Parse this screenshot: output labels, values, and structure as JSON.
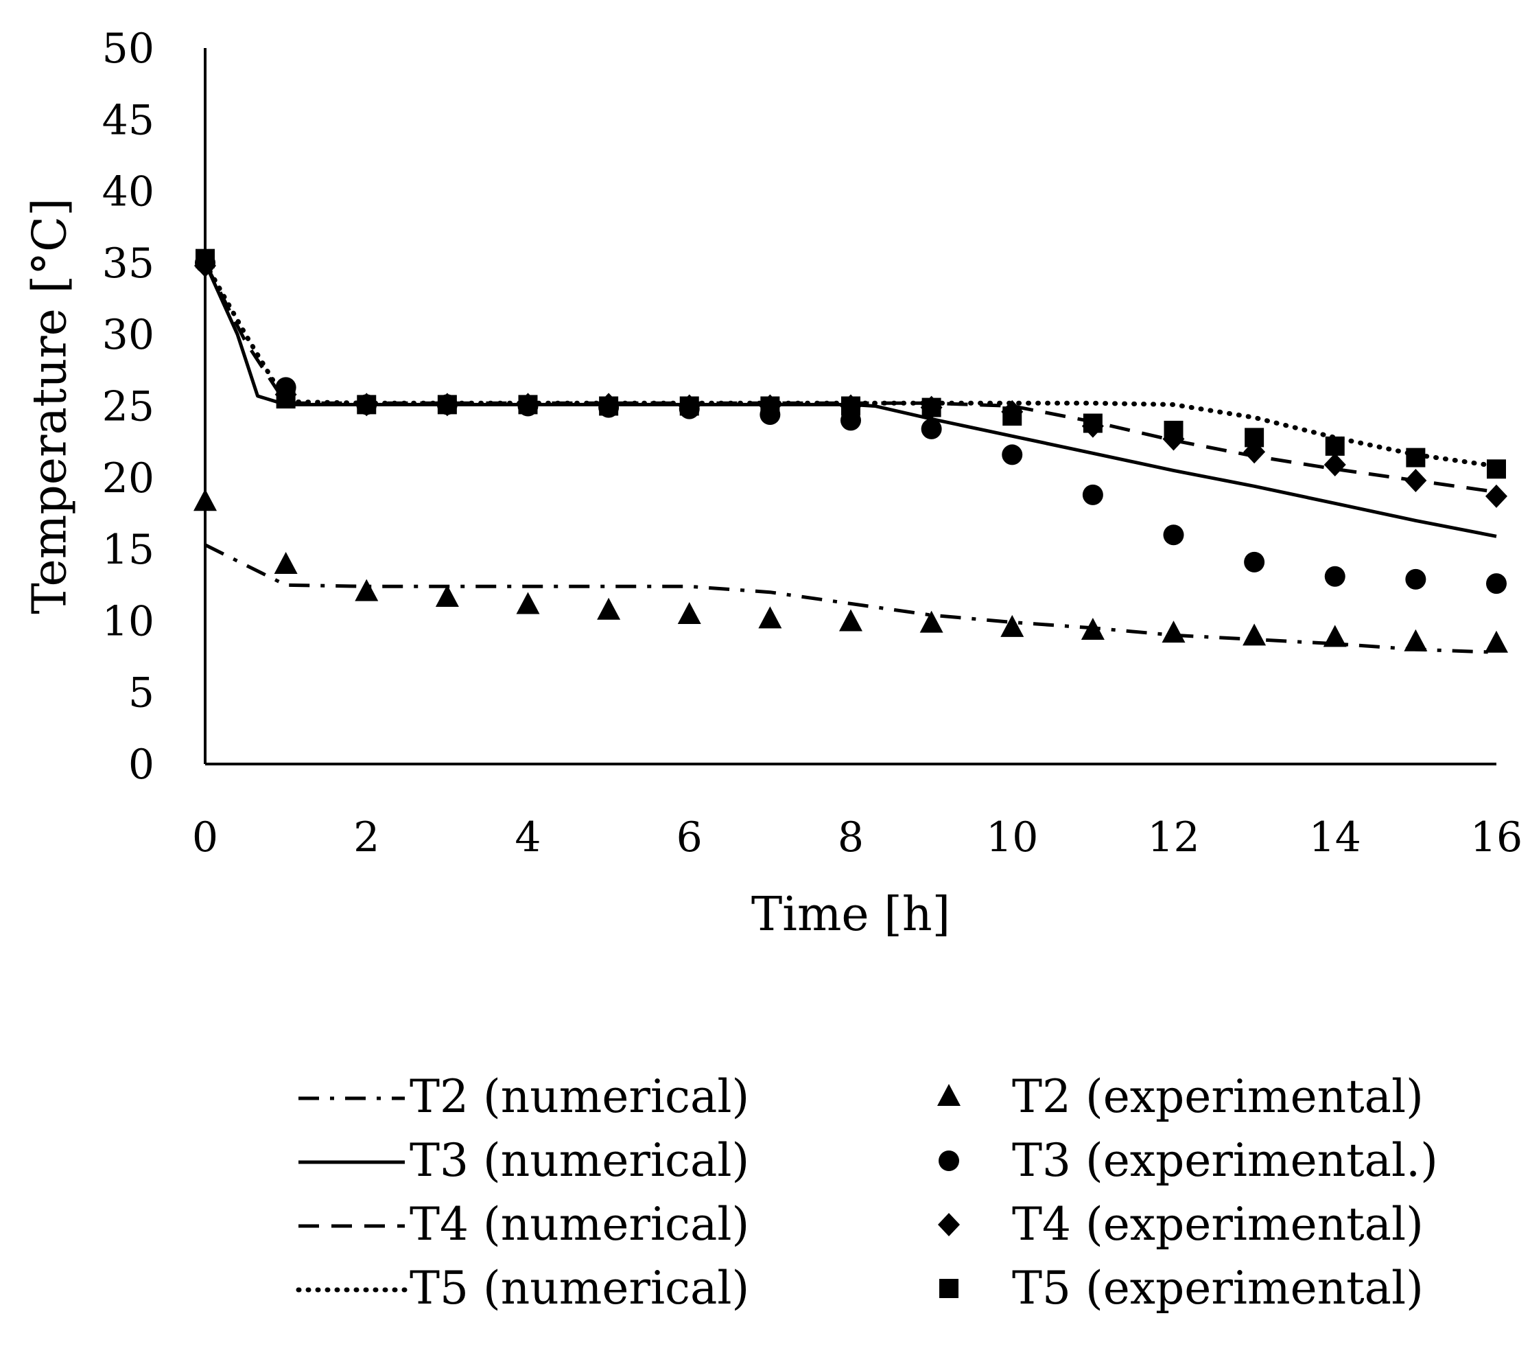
{
  "chart_data": {
    "type": "line",
    "title": "",
    "xlabel": "Time [h]",
    "ylabel": "Temperature [°C]",
    "xlim": [
      0,
      16
    ],
    "ylim": [
      0,
      50
    ],
    "xticks": [
      0,
      2,
      4,
      6,
      8,
      10,
      12,
      14,
      16
    ],
    "yticks": [
      0,
      5,
      10,
      15,
      20,
      25,
      30,
      35,
      40,
      45,
      50
    ],
    "grid": false,
    "legend_position": "bottom",
    "series": [
      {
        "name": "T2 (numerical)",
        "kind": "line",
        "style": "dashdot",
        "x": [
          0,
          1,
          2,
          4,
          6,
          7,
          8,
          9,
          10,
          11,
          12,
          13,
          14,
          15,
          16
        ],
        "y": [
          15.3,
          12.5,
          12.4,
          12.4,
          12.4,
          12.0,
          11.2,
          10.4,
          9.9,
          9.5,
          9.0,
          8.7,
          8.4,
          8.0,
          7.8
        ]
      },
      {
        "name": "T3 (numerical)",
        "kind": "line",
        "style": "solid",
        "x": [
          0,
          0.4,
          0.65,
          1,
          2,
          4,
          6,
          8,
          8.3,
          9,
          10,
          11,
          12,
          13,
          14,
          15,
          16
        ],
        "y": [
          35.0,
          30.0,
          25.7,
          25.1,
          25.1,
          25.1,
          25.1,
          25.1,
          25.0,
          24.1,
          22.9,
          21.7,
          20.5,
          19.4,
          18.2,
          17.0,
          15.9
        ]
      },
      {
        "name": "T4 (numerical)",
        "kind": "line",
        "style": "dashed",
        "x": [
          0,
          0.5,
          1,
          2,
          4,
          6,
          8,
          9,
          10,
          11,
          12,
          13,
          14,
          15,
          16
        ],
        "y": [
          35.0,
          29.5,
          25.2,
          25.2,
          25.2,
          25.2,
          25.2,
          25.2,
          25.0,
          23.9,
          22.6,
          21.5,
          20.6,
          19.8,
          19.0
        ]
      },
      {
        "name": "T5 (numerical)",
        "kind": "line",
        "style": "dotted",
        "x": [
          0,
          0.5,
          1,
          2,
          4,
          6,
          8,
          9,
          10,
          11,
          12,
          13,
          14,
          15,
          16
        ],
        "y": [
          35.0,
          30.0,
          25.3,
          25.2,
          25.2,
          25.2,
          25.2,
          25.2,
          25.2,
          25.2,
          25.1,
          24.2,
          22.8,
          21.6,
          20.8
        ]
      },
      {
        "name": "T2 (experimental)",
        "kind": "scatter",
        "marker": "triangle",
        "x": [
          0,
          1,
          2,
          3,
          4,
          5,
          6,
          7,
          8,
          9,
          10,
          11,
          12,
          13,
          14,
          15,
          16
        ],
        "y": [
          18.3,
          13.9,
          12.0,
          11.6,
          11.1,
          10.7,
          10.4,
          10.1,
          9.9,
          9.8,
          9.5,
          9.3,
          9.1,
          8.9,
          8.8,
          8.5,
          8.4
        ]
      },
      {
        "name": "T3 (experimental.)",
        "kind": "scatter",
        "marker": "circle",
        "x": [
          0,
          1,
          2,
          3,
          4,
          5,
          6,
          7,
          8,
          9,
          10,
          11,
          12,
          13,
          14,
          15,
          16
        ],
        "y": [
          35.0,
          26.3,
          25.1,
          25.1,
          25.0,
          24.9,
          24.8,
          24.4,
          24.0,
          23.4,
          21.6,
          18.8,
          16.0,
          14.1,
          13.1,
          12.9,
          12.6
        ]
      },
      {
        "name": "T4 (experimental)",
        "kind": "scatter",
        "marker": "diamond",
        "x": [
          0,
          1,
          2,
          3,
          4,
          5,
          6,
          7,
          8,
          9,
          10,
          11,
          12,
          13,
          14,
          15,
          16
        ],
        "y": [
          34.8,
          25.8,
          25.1,
          25.1,
          25.1,
          25.1,
          25.0,
          25.0,
          25.0,
          24.9,
          24.6,
          23.6,
          22.7,
          21.8,
          20.9,
          19.8,
          18.7
        ]
      },
      {
        "name": "T5 (experimental)",
        "kind": "scatter",
        "marker": "square",
        "x": [
          0,
          1,
          2,
          3,
          4,
          5,
          6,
          7,
          8,
          9,
          10,
          11,
          12,
          13,
          14,
          15,
          16
        ],
        "y": [
          35.3,
          25.5,
          25.1,
          25.1,
          25.1,
          25.0,
          25.0,
          25.0,
          25.0,
          24.9,
          24.3,
          23.8,
          23.3,
          22.8,
          22.2,
          21.4,
          20.6
        ]
      }
    ],
    "colors": {
      "ink": "#000000",
      "background": "#ffffff"
    }
  }
}
